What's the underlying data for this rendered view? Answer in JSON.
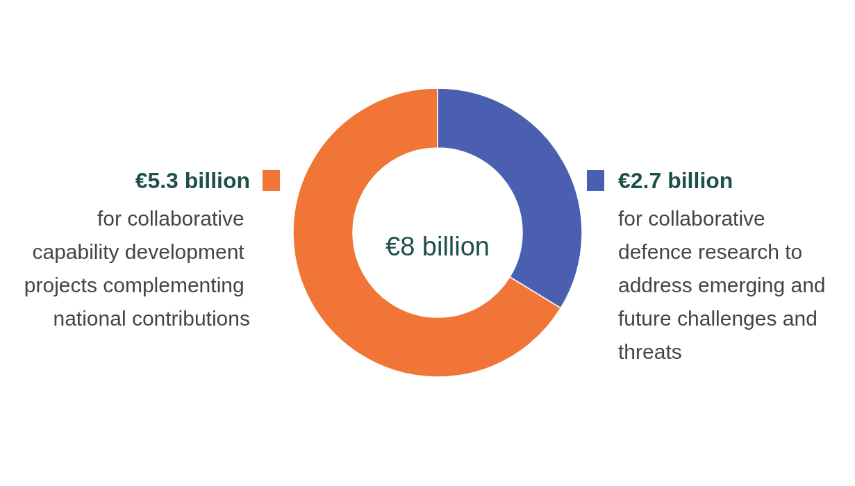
{
  "chart_data": {
    "type": "donut",
    "categories": [
      "for collaborative capability development projects complementing national contributions",
      "for collaborative defence research to address emerging and future challenges and threats"
    ],
    "values": [
      5.3,
      2.7
    ],
    "colors": [
      "#f07536",
      "#4a5fb0"
    ],
    "value_labels": [
      "€5.3 billion",
      "€2.7 billion"
    ],
    "annotations": [
      "€8 billion"
    ]
  }
}
